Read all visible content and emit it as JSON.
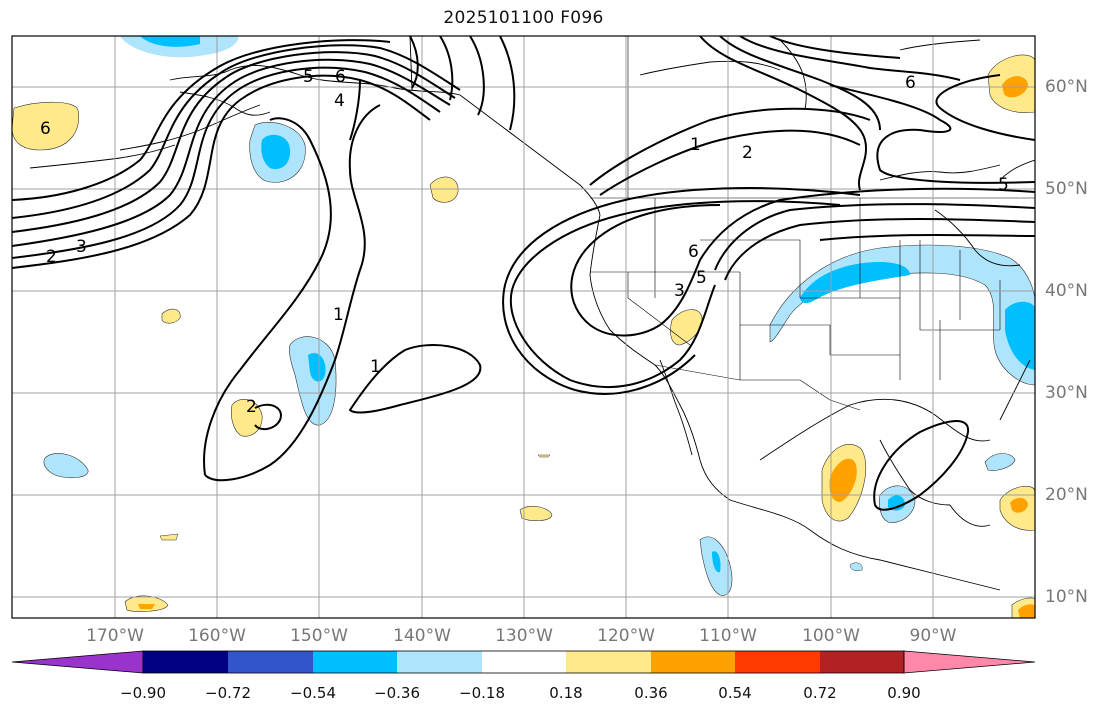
{
  "title": "2025101100 F096",
  "map": {
    "lon_labels": [
      "170°W",
      "160°W",
      "150°W",
      "140°W",
      "130°W",
      "120°W",
      "110°W",
      "100°W",
      "90°W"
    ],
    "lat_labels": [
      "60°N",
      "50°N",
      "40°N",
      "30°N",
      "20°N",
      "10°N"
    ],
    "extent": {
      "lon_min": -180,
      "lon_max": -80,
      "lat_min": 8,
      "lat_max": 65
    },
    "gridlines": true
  },
  "colorbar": {
    "ticks": [
      "−0.90",
      "−0.72",
      "−0.54",
      "−0.36",
      "−0.18",
      "0.18",
      "0.36",
      "0.54",
      "0.72",
      "0.90"
    ],
    "colors": [
      "#9933cc",
      "#000080",
      "#3355cc",
      "#00bfff",
      "#aee4fc",
      "#ffffff",
      "#ffe98a",
      "#ffa200",
      "#ff3a00",
      "#b22222",
      "#ff88aa"
    ],
    "extend": "both"
  },
  "contour_labels": {
    "west_6": "6",
    "west_2": "2",
    "west_3": "3",
    "aleut_5": "5",
    "aleut_6": "6",
    "aleut_4": "4",
    "mid_1a": "1",
    "mid_1b": "1",
    "hawaii_2": "2",
    "n_1": "1",
    "n_2": "2",
    "ne_6": "6",
    "e_5": "5",
    "coast_6": "6",
    "coast_5": "5",
    "coast_3": "3"
  },
  "colors": {
    "contour": "#000000",
    "grid": "#a0a0a0",
    "coast": "#000000"
  }
}
